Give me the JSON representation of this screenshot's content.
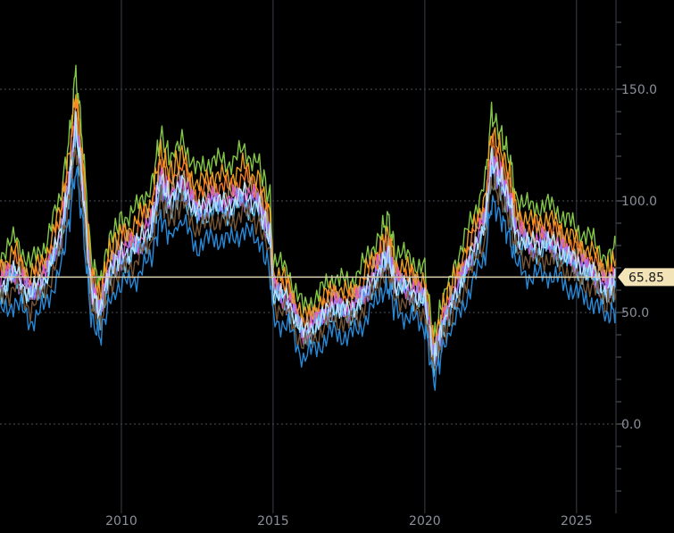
{
  "chart_data": {
    "type": "line",
    "title": "",
    "xlabel": "",
    "ylabel": "",
    "xlim": [
      2006.0,
      2026.3
    ],
    "ylim": [
      -40,
      190
    ],
    "grid": true,
    "legend": "none",
    "x_ticks": [
      {
        "value": 2010,
        "label": "2010"
      },
      {
        "value": 2015,
        "label": "2015"
      },
      {
        "value": 2020,
        "label": "2020"
      },
      {
        "value": 2025,
        "label": "2025"
      }
    ],
    "y_ticks": [
      {
        "value": 150,
        "label": "150.0"
      },
      {
        "value": 100,
        "label": "100.0"
      },
      {
        "value": 50,
        "label": "50.0"
      },
      {
        "value": 0,
        "label": "0.0"
      }
    ],
    "last_value": {
      "value": 65.85,
      "label": "65.85"
    },
    "x": [
      2006.0,
      2006.5,
      2007.0,
      2007.5,
      2008.0,
      2008.3,
      2008.5,
      2008.7,
      2009.0,
      2009.3,
      2009.6,
      2010.0,
      2010.5,
      2011.0,
      2011.3,
      2011.6,
      2012.0,
      2012.5,
      2013.0,
      2013.5,
      2014.0,
      2014.5,
      2014.9,
      2015.0,
      2015.5,
      2016.0,
      2016.5,
      2017.0,
      2017.5,
      2018.0,
      2018.5,
      2018.8,
      2019.0,
      2019.5,
      2020.0,
      2020.3,
      2020.6,
      2021.0,
      2021.5,
      2022.0,
      2022.2,
      2022.5,
      2022.8,
      2023.0,
      2023.5,
      2024.0,
      2024.5,
      2025.0,
      2025.5,
      2026.0,
      2026.3
    ],
    "base_values": [
      62,
      68,
      58,
      66,
      85,
      110,
      135,
      110,
      60,
      50,
      68,
      76,
      80,
      90,
      110,
      100,
      108,
      95,
      100,
      98,
      103,
      99,
      84,
      60,
      55,
      40,
      46,
      53,
      50,
      58,
      70,
      76,
      64,
      60,
      56,
      28,
      45,
      58,
      74,
      92,
      118,
      110,
      100,
      86,
      80,
      82,
      78,
      72,
      68,
      60,
      65
    ],
    "series": [
      {
        "name": "",
        "color": "#8bd14a",
        "offset": 16,
        "amp": 1.12
      },
      {
        "name": "",
        "color": "#f5a623",
        "offset": 10,
        "amp": 1.08
      },
      {
        "name": "",
        "color": "#ff7f2a",
        "offset": 6,
        "amp": 1.05
      },
      {
        "name": "",
        "color": "#c9a26a",
        "offset": 3,
        "amp": 1.0
      },
      {
        "name": "",
        "color": "#e056d0",
        "offset": 1,
        "amp": 1.0
      },
      {
        "name": "",
        "color": "#9b7bff",
        "offset": -1,
        "amp": 0.98
      },
      {
        "name": "",
        "color": "#5ec8ff",
        "offset": -3,
        "amp": 0.96
      },
      {
        "name": "",
        "color": "#c0e8ff",
        "offset": 0,
        "amp": 1.0
      },
      {
        "name": "",
        "color": "#7a5a3a",
        "offset": -7,
        "amp": 0.95
      },
      {
        "name": "",
        "color": "#2a8fe0",
        "offset": -14,
        "amp": 0.9
      }
    ]
  }
}
